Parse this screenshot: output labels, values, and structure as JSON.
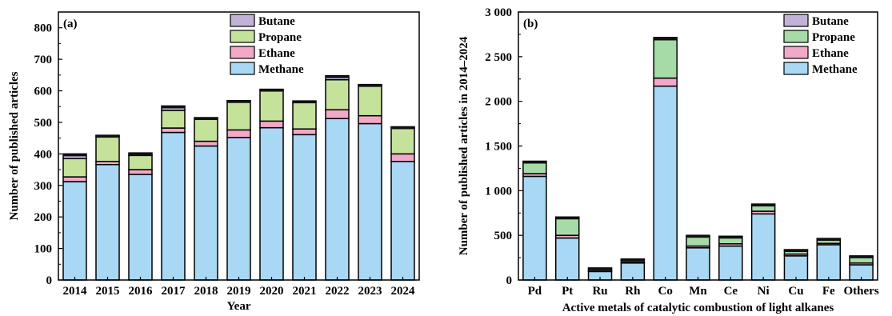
{
  "colors": {
    "methane": "#a9d8f5",
    "ethane": "#f2a9c9",
    "propane": "#c5e29b",
    "propane_b": "#a6dba8",
    "butane": "#c3b2d8",
    "cap": "#111111"
  },
  "chart_data": [
    {
      "type": "bar",
      "stacked": true,
      "panel": "(a)",
      "xlabel": "Year",
      "ylabel": "Number of published articles",
      "ylim": [
        0,
        850
      ],
      "yticks": [
        0,
        100,
        200,
        300,
        400,
        500,
        600,
        700,
        800
      ],
      "ytick_labels": [
        "0",
        "100",
        "200",
        "300",
        "400",
        "500",
        "600",
        "700",
        "800"
      ],
      "categories": [
        "2014",
        "2015",
        "2016",
        "2017",
        "2018",
        "2019",
        "2020",
        "2021",
        "2022",
        "2023",
        "2024"
      ],
      "legend_position": "top-right",
      "series": [
        {
          "name": "Methane",
          "color_key": "methane",
          "values": [
            312,
            366,
            335,
            468,
            425,
            452,
            483,
            461,
            512,
            496,
            376
          ]
        },
        {
          "name": "Ethane",
          "color_key": "ethane",
          "values": [
            15,
            10,
            15,
            14,
            15,
            24,
            21,
            18,
            28,
            25,
            24
          ]
        },
        {
          "name": "Propane",
          "color_key": "propane",
          "values": [
            58,
            80,
            45,
            56,
            72,
            90,
            98,
            89,
            95,
            96,
            83
          ]
        },
        {
          "name": "Butane",
          "color_key": "butane",
          "values": [
            15,
            3,
            8,
            14,
            3,
            3,
            3,
            0,
            13,
            3,
            3
          ]
        }
      ]
    },
    {
      "type": "bar",
      "stacked": true,
      "panel": "(b)",
      "xlabel": "Active metals of catalytic combustion of light alkanes",
      "ylabel": "Number of published articles in 2014–2024",
      "ylim": [
        0,
        3000
      ],
      "yticks": [
        0,
        500,
        1000,
        1500,
        2000,
        2500,
        3000
      ],
      "ytick_labels": [
        "0",
        "500",
        "1 000",
        "1 500",
        "2 000",
        "2 500",
        "3 000"
      ],
      "categories": [
        "Pd",
        "Pt",
        "Ru",
        "Rh",
        "Co",
        "Mn",
        "Ce",
        "Ni",
        "Cu",
        "Fe",
        "Others"
      ],
      "legend_position": "top-right",
      "series": [
        {
          "name": "Methane",
          "color_key": "methane",
          "values": [
            1160,
            470,
            95,
            190,
            2170,
            360,
            380,
            740,
            270,
            395,
            170
          ]
        },
        {
          "name": "Ethane",
          "color_key": "ethane",
          "values": [
            30,
            30,
            5,
            10,
            90,
            20,
            25,
            30,
            20,
            15,
            20
          ]
        },
        {
          "name": "Propane",
          "color_key": "propane_b",
          "values": [
            130,
            190,
            25,
            25,
            430,
            110,
            75,
            70,
            40,
            45,
            70
          ]
        },
        {
          "name": "Butane",
          "color_key": "butane",
          "values": [
            10,
            15,
            10,
            10,
            25,
            10,
            10,
            10,
            10,
            10,
            10
          ]
        }
      ]
    }
  ]
}
